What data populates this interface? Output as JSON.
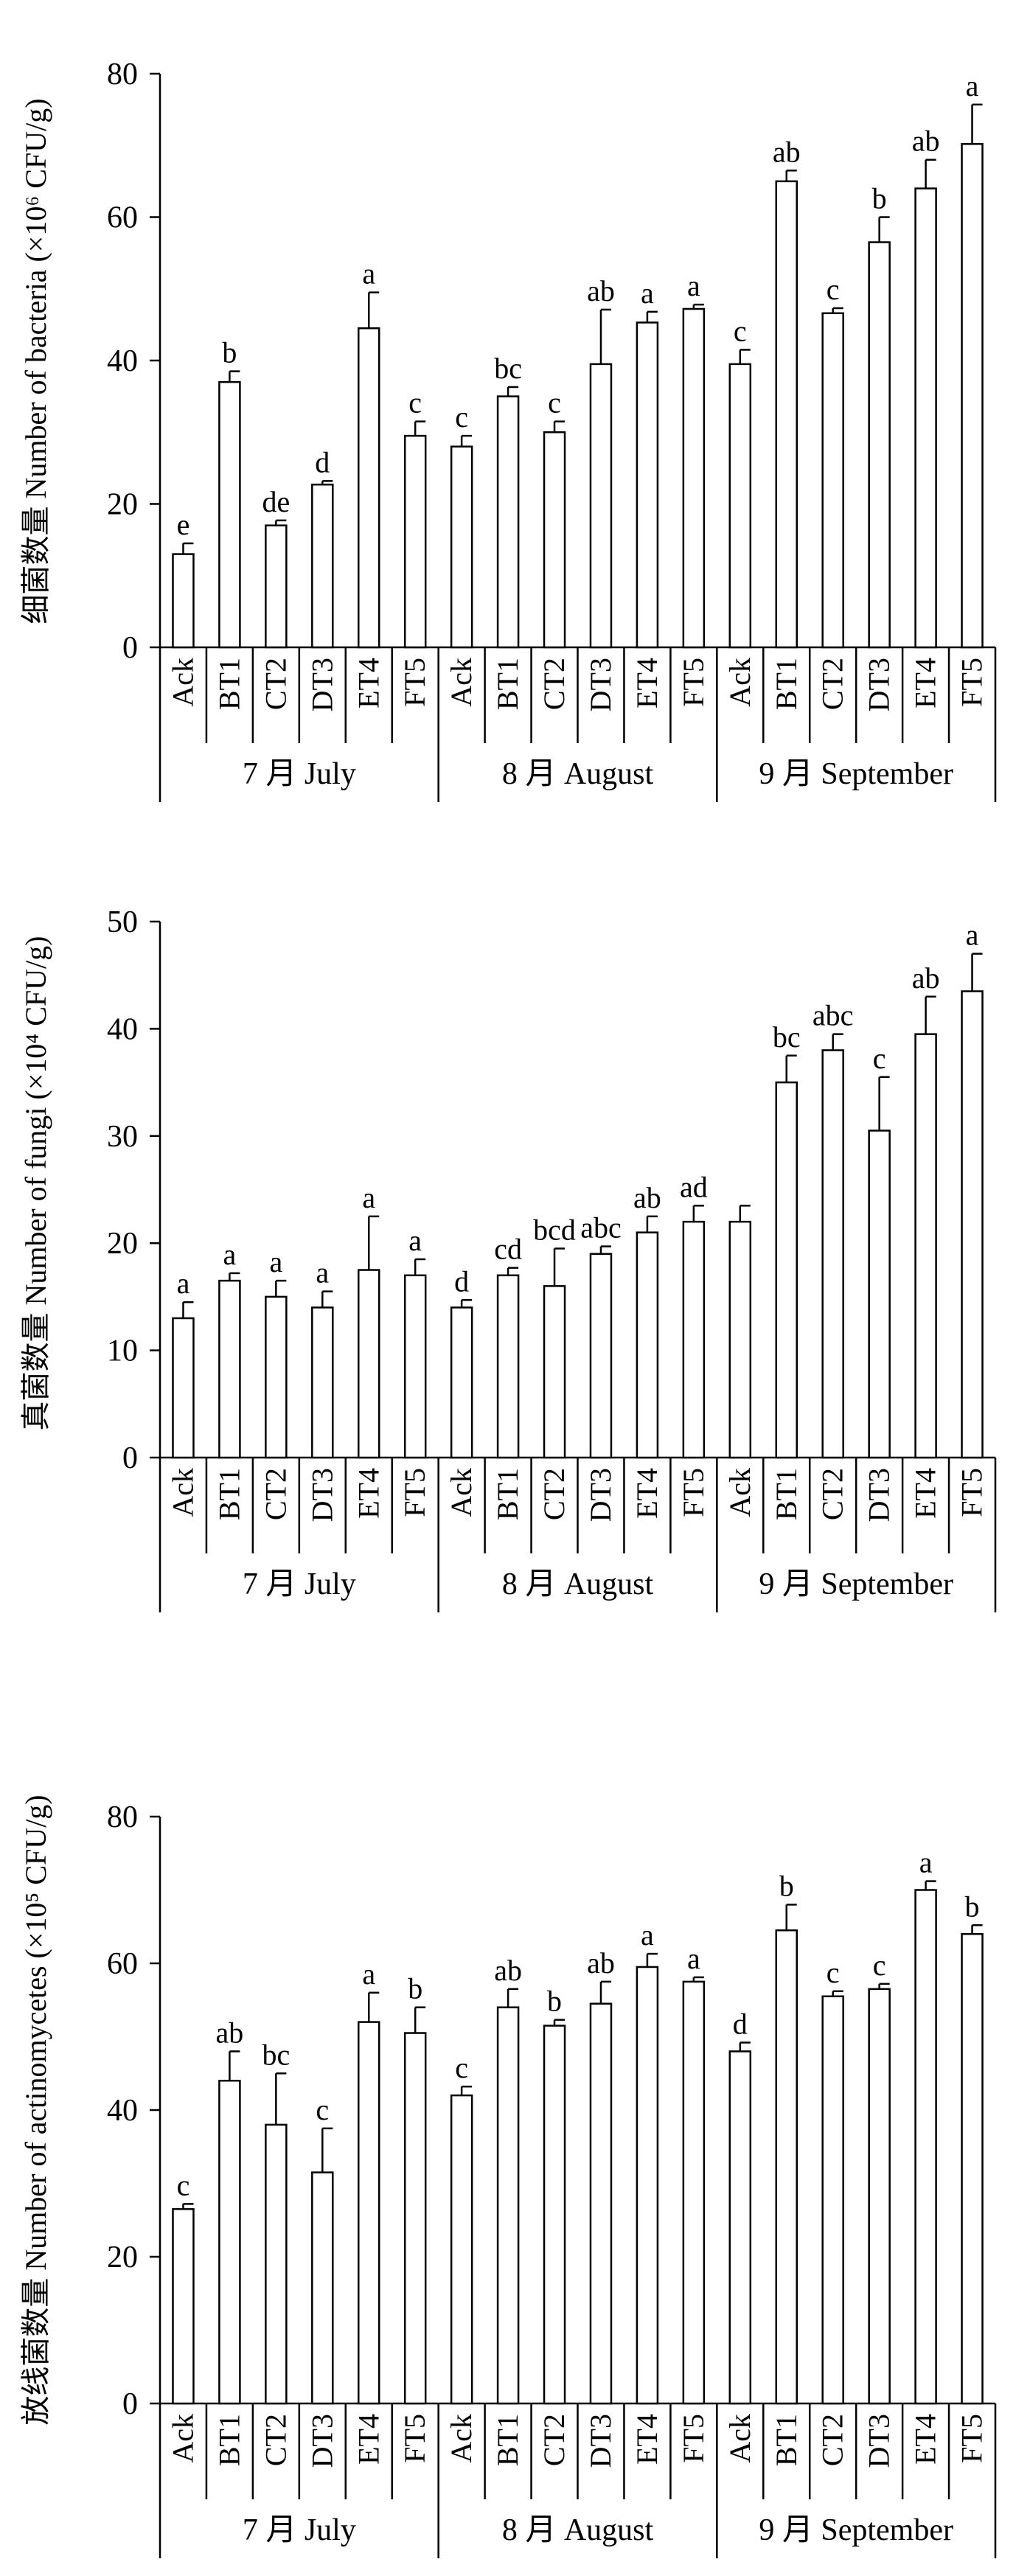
{
  "chart_data": [
    {
      "type": "bar",
      "ylabel": "细菌数量 Number of bacteria (×10⁶ CFU/g)",
      "ylim": [
        0,
        80
      ],
      "yticks": [
        0,
        20,
        40,
        60,
        80
      ],
      "groups": [
        "7 月 July",
        "8 月 August",
        "9 月 September"
      ],
      "categories": [
        "Ack",
        "BT1",
        "CT2",
        "DT3",
        "ET4",
        "FT5"
      ],
      "values": [
        [
          13.0,
          37.0,
          17.0,
          22.7,
          44.5,
          29.5
        ],
        [
          28.0,
          35.0,
          30.0,
          39.5,
          45.3,
          47.2
        ],
        [
          39.5,
          65.0,
          46.6,
          56.5,
          64.0,
          70.2
        ]
      ],
      "errors": [
        [
          1.5,
          1.5,
          0.7,
          0.5,
          5.0,
          2.0
        ],
        [
          1.5,
          1.3,
          1.5,
          7.6,
          1.5,
          0.6
        ],
        [
          2.0,
          1.5,
          0.7,
          3.5,
          4.0,
          5.5
        ]
      ],
      "letters": [
        [
          "e",
          "b",
          "de",
          "d",
          "a",
          "c"
        ],
        [
          "c",
          "bc",
          "c",
          "ab",
          "a",
          "a"
        ],
        [
          "c",
          "ab",
          "c",
          "b",
          "ab",
          "a"
        ]
      ],
      "grid": false
    },
    {
      "type": "bar",
      "ylabel": "真菌数量 Number of fungi (×10⁴ CFU/g)",
      "ylim": [
        0,
        50
      ],
      "yticks": [
        0,
        10,
        20,
        30,
        40,
        50
      ],
      "groups": [
        "7 月 July",
        "8 月 August",
        "9 月 September"
      ],
      "categories": [
        "Ack",
        "BT1",
        "CT2",
        "DT3",
        "ET4",
        "FT5"
      ],
      "values": [
        [
          13.0,
          16.5,
          15.0,
          14.0,
          17.5,
          17.0
        ],
        [
          14.0,
          17.0,
          16.0,
          19.0,
          21.0,
          22.0
        ],
        [
          22.0,
          35.0,
          38.0,
          30.5,
          39.5,
          43.5
        ]
      ],
      "errors": [
        [
          1.5,
          0.7,
          1.5,
          1.5,
          5.0,
          1.5
        ],
        [
          0.7,
          0.7,
          3.5,
          0.7,
          1.5,
          1.5
        ],
        [
          1.5,
          2.5,
          1.5,
          5.0,
          3.5,
          3.5
        ]
      ],
      "letters": [
        [
          "a",
          "a",
          "a",
          "a",
          "a",
          "a"
        ],
        [
          "d",
          "cd",
          "bcd",
          "abc",
          "ab",
          "ad"
        ],
        [
          "",
          "bc",
          "abc",
          "c",
          "ab",
          "a"
        ]
      ],
      "grid": false
    },
    {
      "type": "bar",
      "ylabel": "放线菌数量 Number of actinomycetes (×10⁵ CFU/g)",
      "ylim": [
        0,
        80
      ],
      "yticks": [
        0,
        20,
        40,
        60,
        80
      ],
      "groups": [
        "7 月 July",
        "8 月 August",
        "9 月 September"
      ],
      "categories": [
        "Ack",
        "BT1",
        "CT2",
        "DT3",
        "ET4",
        "FT5"
      ],
      "values": [
        [
          26.5,
          44.0,
          38.0,
          31.5,
          52.0,
          50.5
        ],
        [
          42.0,
          54.0,
          51.5,
          54.5,
          59.5,
          57.5
        ],
        [
          48.0,
          64.5,
          55.5,
          56.5,
          70.0,
          64.0
        ]
      ],
      "errors": [
        [
          0.7,
          4.0,
          7.0,
          6.0,
          4.0,
          3.5
        ],
        [
          1.2,
          2.5,
          0.8,
          3.0,
          1.8,
          0.6
        ],
        [
          1.2,
          3.5,
          0.7,
          0.7,
          1.2,
          1.2
        ]
      ],
      "letters": [
        [
          "c",
          "ab",
          "bc",
          "c",
          "a",
          "b"
        ],
        [
          "c",
          "ab",
          "b",
          "ab",
          "a",
          "a"
        ],
        [
          "d",
          "b",
          "c",
          "c",
          "a",
          "b"
        ]
      ],
      "grid": false
    }
  ]
}
